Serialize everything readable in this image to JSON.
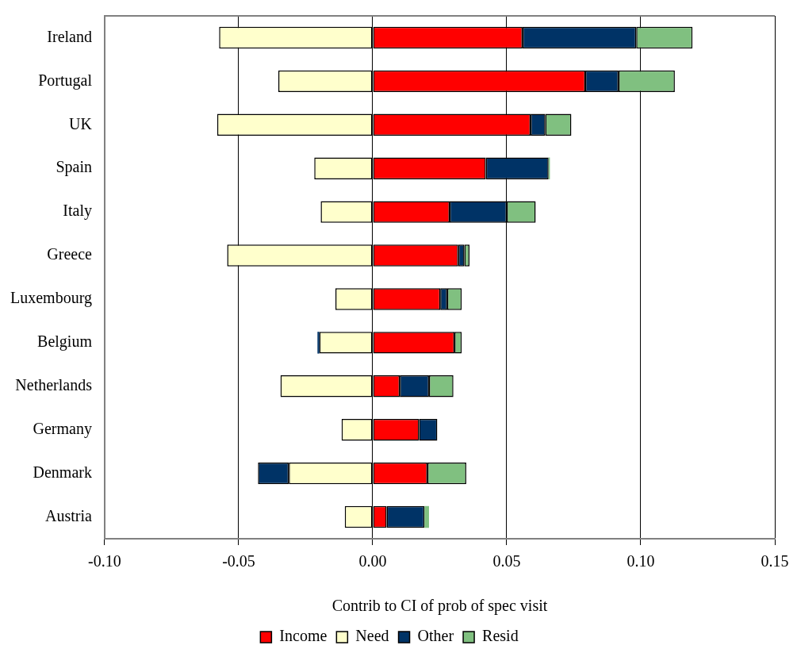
{
  "chart_data": {
    "type": "bar",
    "orientation": "horizontal",
    "stacked": true,
    "categories": [
      "Ireland",
      "Portugal",
      "UK",
      "Spain",
      "Italy",
      "Greece",
      "Luxembourg",
      "Belgium",
      "Netherlands",
      "Germany",
      "Denmark",
      "Austria"
    ],
    "xlabel": "Contrib to CI of prob of spec visit",
    "xlim": [
      -0.1,
      0.15
    ],
    "xticks": [
      {
        "value": -0.1,
        "label": "-0.10"
      },
      {
        "value": -0.05,
        "label": "-0.05"
      },
      {
        "value": 0,
        "label": "0.00"
      },
      {
        "value": 0.05,
        "label": "0.05"
      },
      {
        "value": 0.1,
        "label": "0.10"
      },
      {
        "value": 0.15,
        "label": "0.15"
      }
    ],
    "grid": "x",
    "legend": "bottom",
    "series": [
      {
        "name": "Income",
        "color": "#ff0000",
        "values": [
          0.0559,
          0.0793,
          0.0589,
          0.0422,
          0.0287,
          0.0319,
          0.0252,
          0.0305,
          0.0101,
          0.0173,
          0.0204,
          0.0052
        ]
      },
      {
        "name": "Need",
        "color": "#ffffcc",
        "values": [
          -0.0573,
          -0.0352,
          -0.058,
          -0.0218,
          -0.0194,
          -0.0543,
          -0.0139,
          -0.0199,
          -0.0344,
          -0.0116,
          -0.0313,
          -0.0104
        ]
      },
      {
        "name": "Other",
        "color": "#003366",
        "values": [
          0.0424,
          0.0124,
          0.0055,
          0.0234,
          0.0213,
          0.0023,
          0.0026,
          -0.0007,
          0.0109,
          0.0068,
          -0.0115,
          0.0141
        ]
      },
      {
        "name": "Resid",
        "color": "#80c080",
        "values": [
          0.021,
          0.021,
          0.0097,
          0.0005,
          0.0108,
          0.0019,
          0.0054,
          0.0027,
          0.0091,
          null,
          0.0145,
          0.0017
        ]
      }
    ]
  }
}
